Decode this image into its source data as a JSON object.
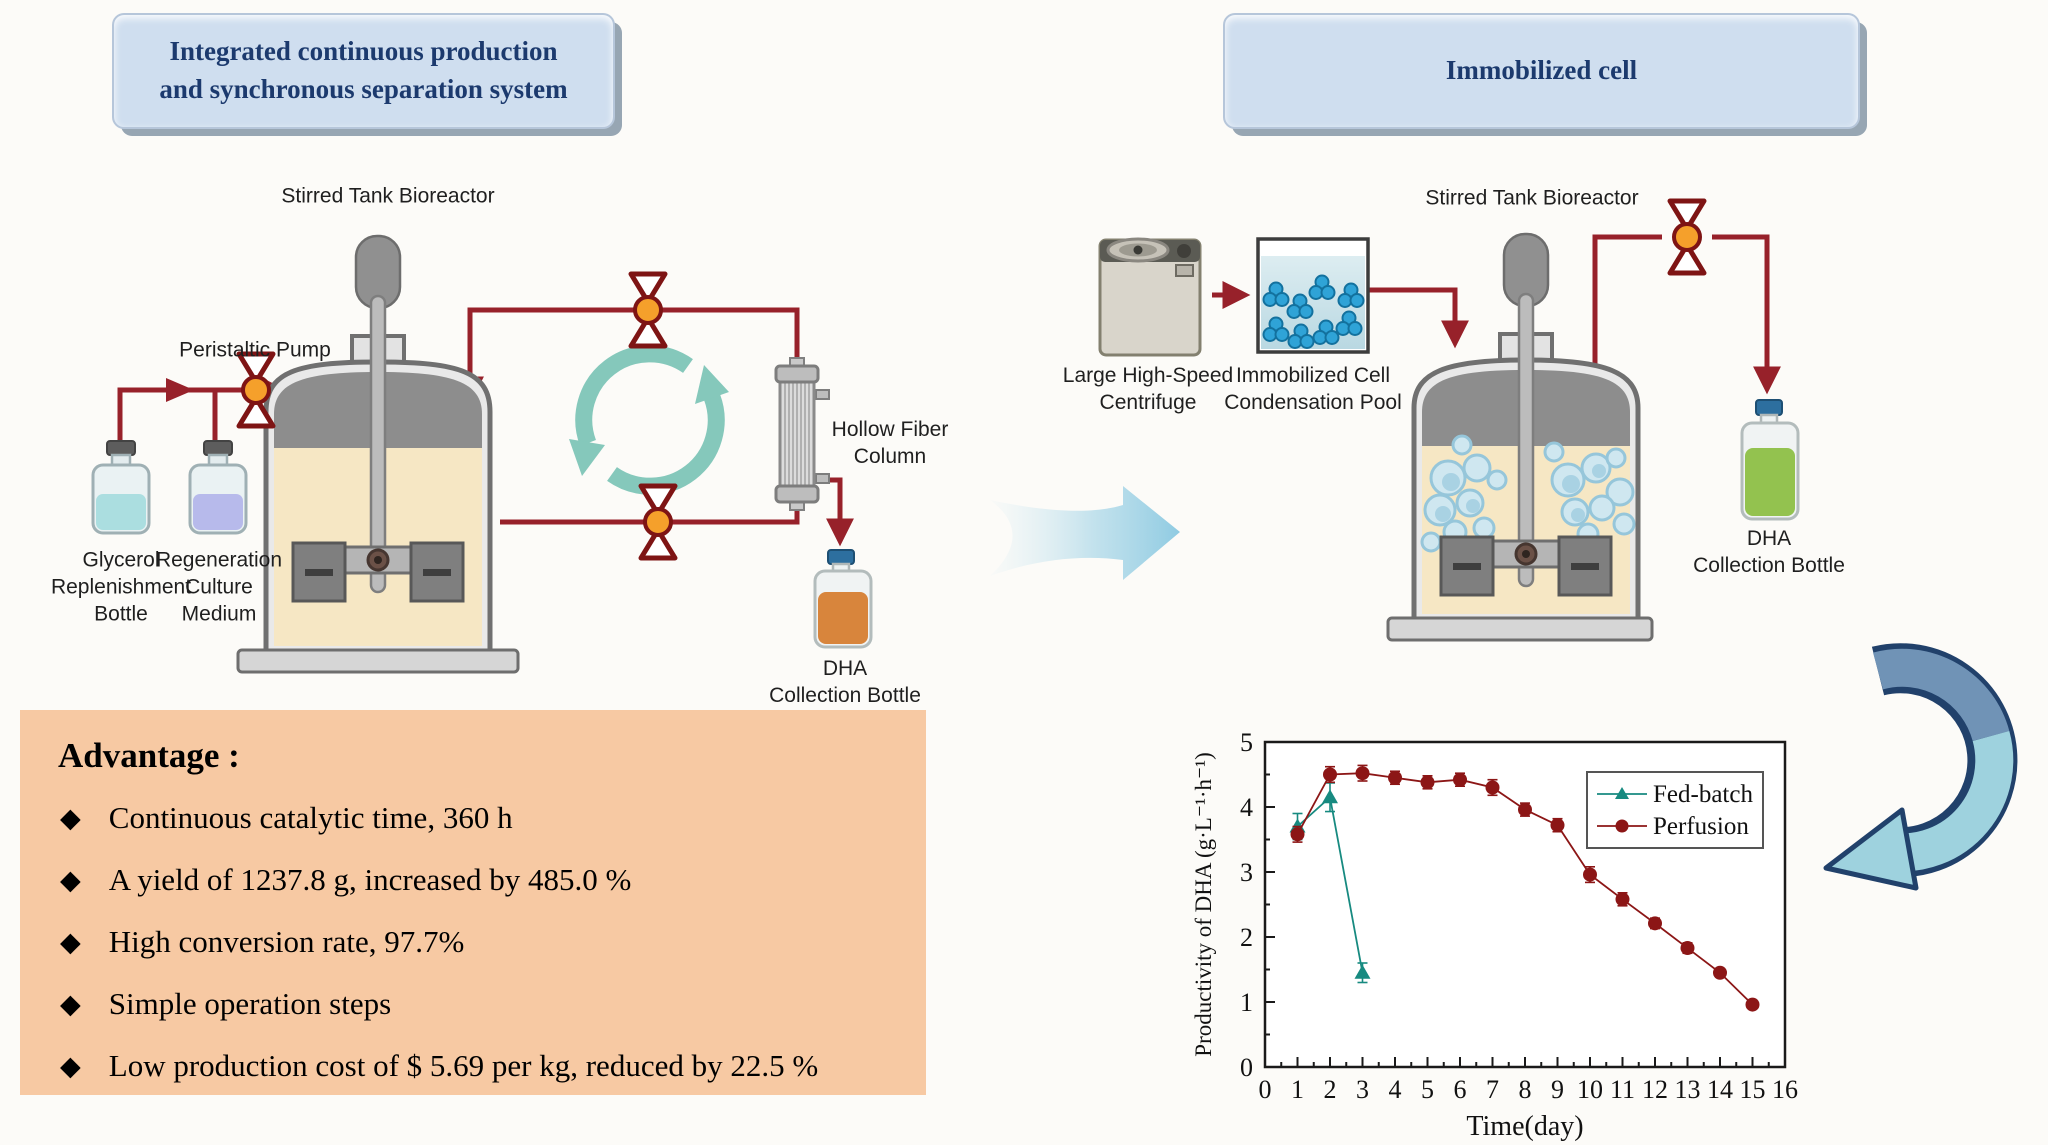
{
  "titles": {
    "left": "Integrated continuous production\nand synchronous separation system",
    "right": "Immobilized cell"
  },
  "left_system": {
    "bioreactor_label": "Stirred Tank Bioreactor",
    "pump_label": "Peristaltic Pump",
    "glycerol_bottle_label": "Glycerol\nReplenishment\nBottle",
    "regeneration_bottle_label": "Regeneration\nCulture\nMedium",
    "hollow_fiber_label": "Hollow Fiber\nColumn",
    "dha_bottle_label": "DHA\nCollection Bottle"
  },
  "right_system": {
    "centrifuge_label": "Large High-Speed\nCentrifuge",
    "pool_label": "Immobilized Cell\nCondensation Pool",
    "bioreactor_label": "Stirred Tank Bioreactor",
    "dha_bottle_label": "DHA\nCollection Bottle"
  },
  "advantages": {
    "heading": "Advantage :",
    "bullet": "◆",
    "items": [
      "Continuous catalytic time, 360 h",
      "A yield of 1237.8 g, increased by 485.0 %",
      "High conversion rate, 97.7%",
      "Simple operation steps",
      "Low production cost of $ 5.69 per kg, reduced by 22.5 %"
    ]
  },
  "colors": {
    "pipe": "#97212a",
    "valve_orange": "#f5a02b",
    "valve_outline": "#7e1414",
    "recycle_teal": "#85c8bb",
    "advantage_bg": "#f7c9a3",
    "title_bg": "#cfdeef",
    "title_text": "#1c3a6e",
    "fed_batch": "#178a80",
    "perfusion": "#8c1616"
  },
  "chart_data": {
    "type": "line",
    "title": "",
    "xlabel": "Time(day)",
    "ylabel": "Productivity of DHA (g·L⁻¹·h⁻¹)",
    "xlim": [
      0,
      16
    ],
    "ylim": [
      0,
      5
    ],
    "x_ticks": [
      0,
      1,
      2,
      3,
      4,
      5,
      6,
      7,
      8,
      9,
      10,
      11,
      12,
      13,
      14,
      15,
      16
    ],
    "y_ticks": [
      0,
      1,
      2,
      3,
      4,
      5
    ],
    "grid": false,
    "legend_position": "top-right",
    "series": [
      {
        "name": "Fed-batch",
        "color": "#178a80",
        "marker": "triangle",
        "x": [
          1,
          2,
          3
        ],
        "y": [
          3.7,
          4.15,
          1.45
        ],
        "err": [
          0.2,
          0.22,
          0.15
        ]
      },
      {
        "name": "Perfusion",
        "color": "#8c1616",
        "marker": "circle",
        "x": [
          1,
          2,
          3,
          4,
          5,
          6,
          7,
          8,
          9,
          10,
          11,
          12,
          13,
          14,
          15
        ],
        "y": [
          3.58,
          4.5,
          4.52,
          4.45,
          4.38,
          4.42,
          4.3,
          3.96,
          3.72,
          2.96,
          2.58,
          2.21,
          1.83,
          1.45,
          0.96
        ],
        "err": [
          0.12,
          0.12,
          0.12,
          0.1,
          0.1,
          0.1,
          0.12,
          0.1,
          0.1,
          0.12,
          0.1,
          0.08,
          0.08,
          0.06,
          0.05
        ]
      }
    ]
  }
}
